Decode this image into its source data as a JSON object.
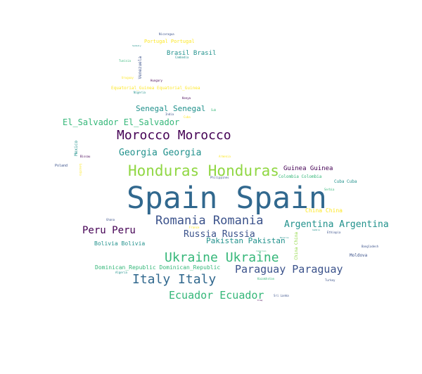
{
  "palette": {
    "dark_purple": "#440154",
    "indigo": "#3b528b",
    "blue": "#31688e",
    "teal": "#21918c",
    "green": "#35b779",
    "lime": "#90d743",
    "yellow": "#fde725"
  },
  "words": {
    "spain": "Spain Spain",
    "honduras": "Honduras Honduras",
    "morocco": "Morocco Morocco",
    "romania": "Romania Romania",
    "ukraine": "Ukraine Ukraine",
    "italy": "Italy Italy",
    "paraguay": "Paraguay Paraguay",
    "ecuador": "Ecuador Ecuador",
    "argentina": "Argentina Argentina",
    "georgia": "Georgia Georgia",
    "peru": "Peru Peru",
    "russia": "Russia Russia",
    "el_salvador": "El_Salvador El_Salvador",
    "senegal": "Senegal Senegal",
    "pakistan": "Pakistan Pakistan",
    "guinea": "Guinea Guinea",
    "brasil": "Brasil Brasil",
    "bolivia": "Bolivia Bolivia",
    "dominican_republic": "Dominican_Republic Dominican_Republic",
    "equatorial_guinea": "Equatorial_Guinea Equatorial_Guinea",
    "portugal": "Portugal Portugal",
    "china": "China China",
    "china_vertical": "China China",
    "colombia": "Colombia Colombia",
    "cuba": "Cuba Cuba",
    "venezuela": "Venezuela",
    "mexico": "Mexico",
    "poland": "Poland",
    "guinea_bissau": "Bissau",
    "nicaragua": "Nicaragua",
    "senegal_small": "Senbaly",
    "tunisia": "Tunisia",
    "uruguay": "Uruguay",
    "hungary": "Hungary",
    "nigeria": "Nigeria",
    "kenya": "Kenya",
    "india": "India",
    "cuba_small": "Cuba",
    "sub": "Sub",
    "cambodia": "Cambodia",
    "philippines": "Philippines",
    "moldova": "Moldova",
    "bangladesh": "Bangladesh",
    "ethiopia": "Ethiopia",
    "kazakhstan": "Kazakhstan",
    "sri_lanka": "Sri Lanka",
    "turkey": "Turkey",
    "armenia": "Armenia",
    "algeria": "Algeria",
    "ghana": "Ghana",
    "france": "France",
    "serbia": "Serbia",
    "belarus": "Belarus",
    "gambia": "Gambia",
    "lesotho": "Lesotho",
    "cameroon": "Cameroon",
    "iraq": "Iraq"
  }
}
